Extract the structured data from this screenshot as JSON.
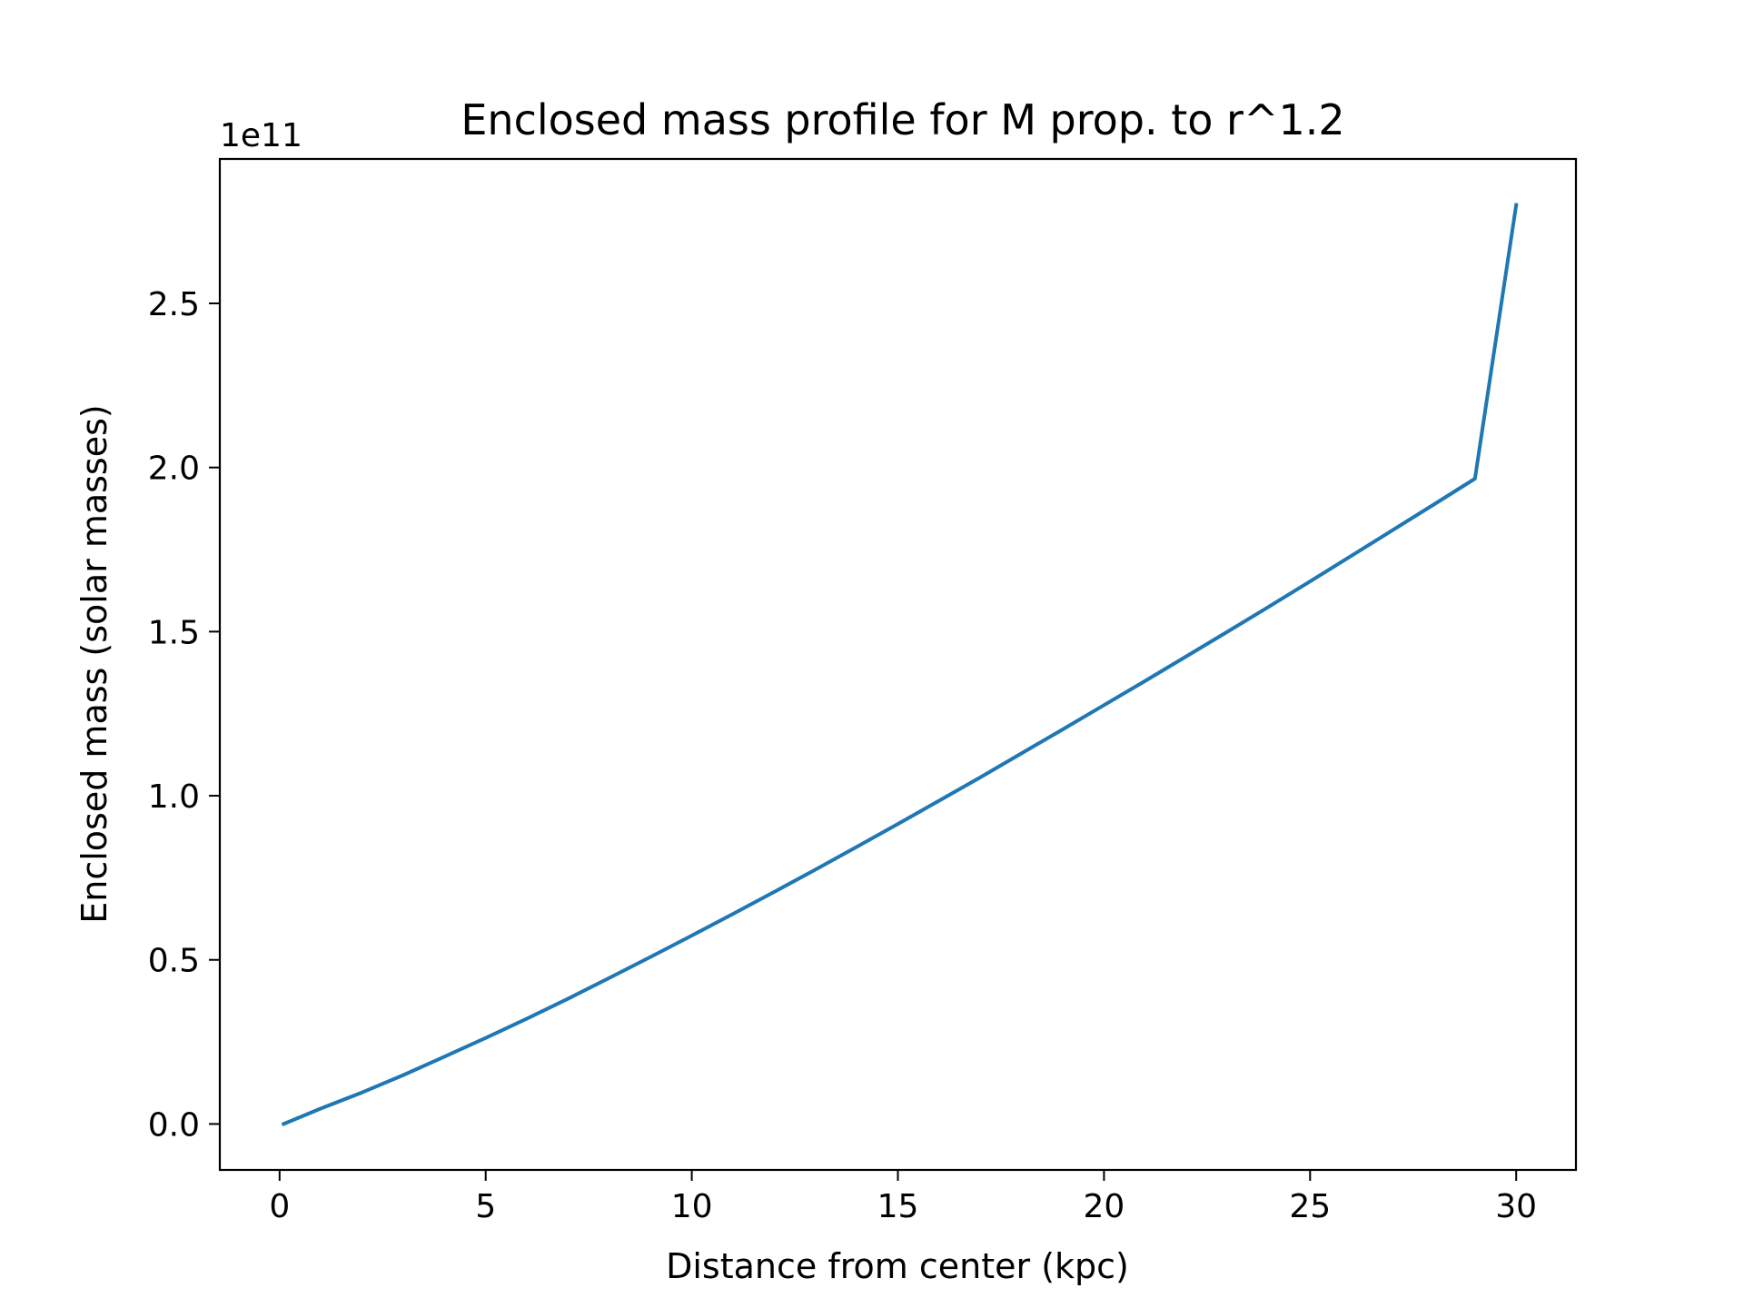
{
  "chart_data": {
    "type": "line",
    "title": "Enclosed mass profile for M prop. to r^1.2",
    "xlabel": "Distance from center (kpc)",
    "ylabel": "Enclosed mass (solar masses)",
    "y_offset_label": "1e11",
    "xlim": [
      -1.45,
      31.45
    ],
    "ylim": [
      -0.14,
      2.94
    ],
    "x_ticks": [
      0,
      5,
      10,
      15,
      20,
      25,
      30
    ],
    "x_tick_labels": [
      "0",
      "5",
      "10",
      "15",
      "20",
      "25",
      "30"
    ],
    "y_ticks": [
      0.0,
      0.5,
      1.0,
      1.5,
      2.0,
      2.5
    ],
    "y_tick_labels": [
      "0.0",
      "0.5",
      "1.0",
      "1.5",
      "2.0",
      "2.5"
    ],
    "grid": false,
    "legend": "none",
    "series": [
      {
        "color": "#1f77b4",
        "x": [
          0.1,
          1,
          2,
          3,
          4,
          5,
          6,
          7,
          8,
          9,
          10,
          11,
          12,
          13,
          14,
          15,
          16,
          17,
          18,
          19,
          20,
          21,
          22,
          23,
          24,
          25,
          26,
          27,
          28,
          29,
          30
        ],
        "y": [
          0.0,
          0.047,
          0.096,
          0.149,
          0.205,
          0.262,
          0.321,
          0.382,
          0.445,
          0.509,
          0.574,
          0.64,
          0.707,
          0.775,
          0.844,
          0.914,
          0.985,
          1.056,
          1.129,
          1.202,
          1.276,
          1.35,
          1.425,
          1.5,
          1.576,
          1.653,
          1.731,
          1.809,
          1.887,
          1.966,
          2.8
        ]
      }
    ]
  }
}
